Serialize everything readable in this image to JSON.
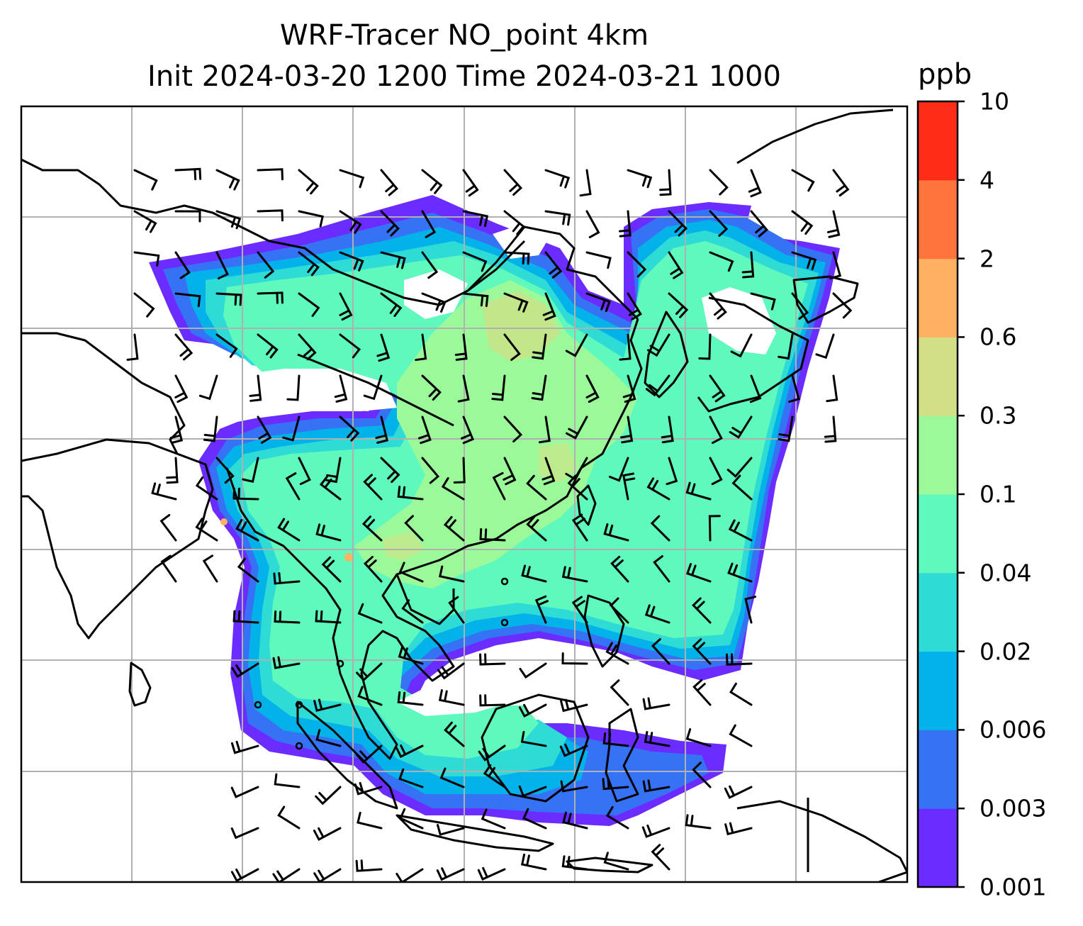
{
  "title_line1": "WRF-Tracer NO_point 4km",
  "title_line2": "Init 2024-03-20 1200 Time 2024-03-21 1000",
  "colorbar": {
    "unit": "ppb",
    "ticks": [
      "0.001",
      "0.003",
      "0.006",
      "0.02",
      "0.04",
      "0.1",
      "0.3",
      "0.6",
      "2",
      "4",
      "10"
    ],
    "colors": [
      "#6a2cff",
      "#3673f4",
      "#04b2ea",
      "#2fdcd5",
      "#5ff8bd",
      "#9bf99a",
      "#d2df86",
      "#ffb061",
      "#ff733c",
      "#ff2c18"
    ]
  },
  "map": {
    "gridlines": true,
    "coastlines": true,
    "wind_barbs": true
  }
}
